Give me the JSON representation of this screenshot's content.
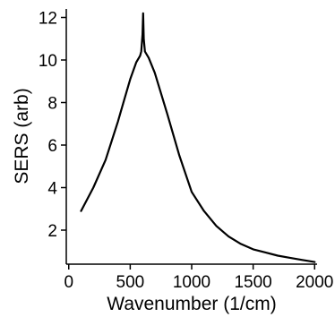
{
  "chart_data": {
    "type": "line",
    "title": "",
    "xlabel": "Wavenumber (1/cm)",
    "ylabel": "SERS (arb)",
    "xlim": [
      -20,
      2020
    ],
    "ylim": [
      0.4,
      12.4
    ],
    "xticks": [
      0,
      500,
      1000,
      1500,
      2000
    ],
    "yticks": [
      2,
      4,
      6,
      8,
      10,
      12
    ],
    "grid": false,
    "legend": "none",
    "series": [
      {
        "color": "#000000",
        "x": [
          100,
          200,
          300,
          400,
          450,
          500,
          550,
          580,
          590,
          600,
          605,
          610,
          620,
          650,
          700,
          800,
          900,
          1000,
          1100,
          1200,
          1300,
          1400,
          1500,
          1600,
          1700,
          1800,
          1900,
          2000
        ],
        "y": [
          2.9,
          4.0,
          5.3,
          7.1,
          8.1,
          9.1,
          9.9,
          10.2,
          10.4,
          11.2,
          12.2,
          11.0,
          10.4,
          10.1,
          9.4,
          7.5,
          5.5,
          3.8,
          2.9,
          2.2,
          1.7,
          1.35,
          1.1,
          0.95,
          0.8,
          0.7,
          0.6,
          0.5
        ]
      }
    ]
  }
}
